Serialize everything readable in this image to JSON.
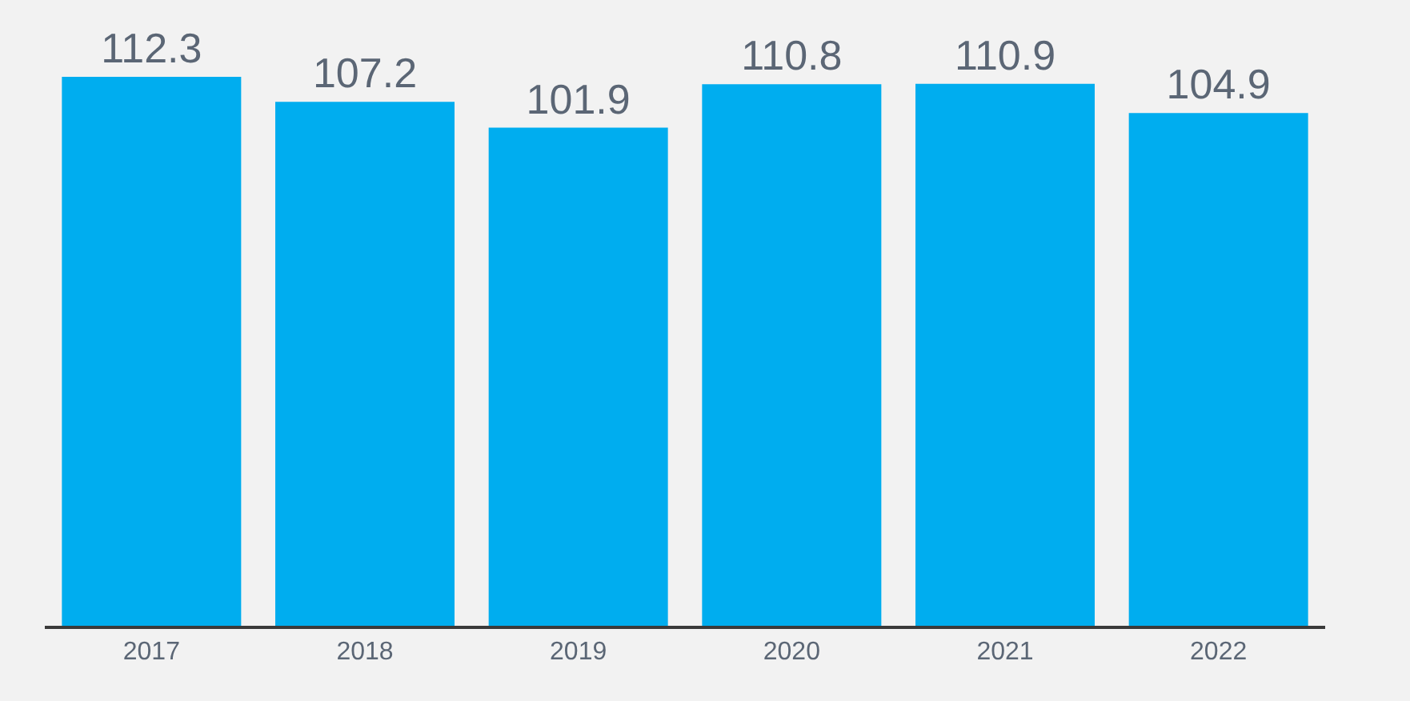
{
  "chart_data": {
    "type": "bar",
    "categories": [
      "2017",
      "2018",
      "2019",
      "2020",
      "2021",
      "2022"
    ],
    "values": [
      112.3,
      107.2,
      101.9,
      110.8,
      110.9,
      104.9
    ],
    "color": "#00adef",
    "data_labels": true,
    "grid": false,
    "legend": false,
    "tick_labels": "x"
  }
}
